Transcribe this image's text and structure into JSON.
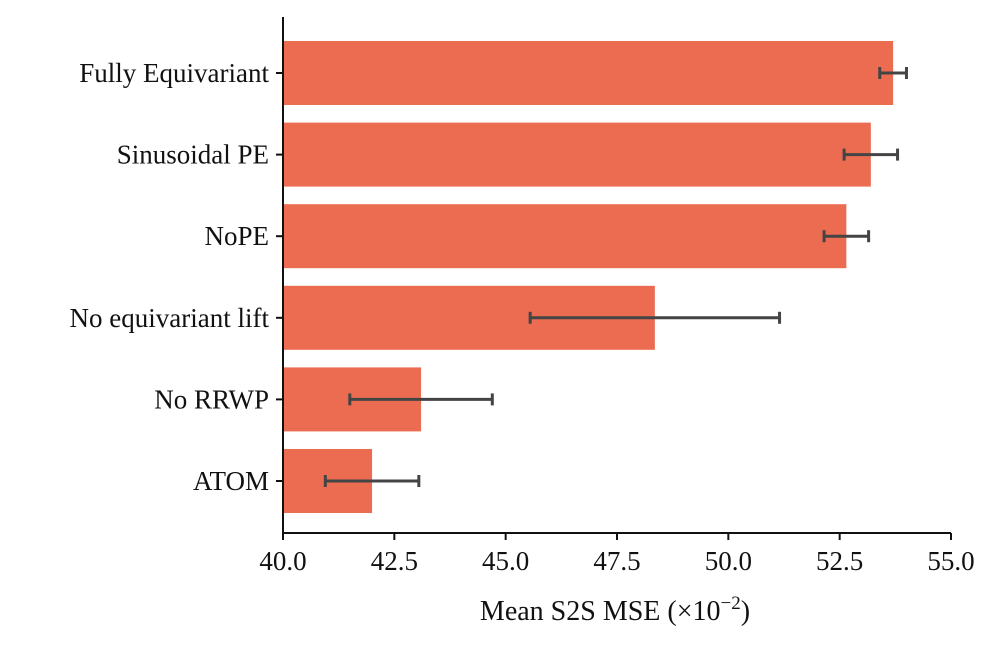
{
  "chart_data": {
    "type": "bar",
    "orientation": "horizontal",
    "categories": [
      "Fully Equivariant",
      "Sinusoidal PE",
      "NoPE",
      "No equivariant lift",
      "No RRWP",
      "ATOM"
    ],
    "values": [
      53.7,
      53.2,
      52.65,
      48.35,
      43.1,
      42.0
    ],
    "errors": [
      0.3,
      0.6,
      0.5,
      2.8,
      1.6,
      1.05
    ],
    "bar_color": "#ec6c52",
    "error_color": "#444444",
    "xlim": [
      40.0,
      55.0
    ],
    "x_ticks": [
      40.0,
      42.5,
      45.0,
      47.5,
      50.0,
      52.5,
      55.0
    ],
    "x_tick_labels": [
      "40.0",
      "42.5",
      "45.0",
      "47.5",
      "50.0",
      "52.5",
      "55.0"
    ],
    "xlabel_main": "Mean S2S MSE (×10",
    "xlabel_exponent": "−2",
    "xlabel_close": ")",
    "title": "",
    "ylabel": ""
  }
}
